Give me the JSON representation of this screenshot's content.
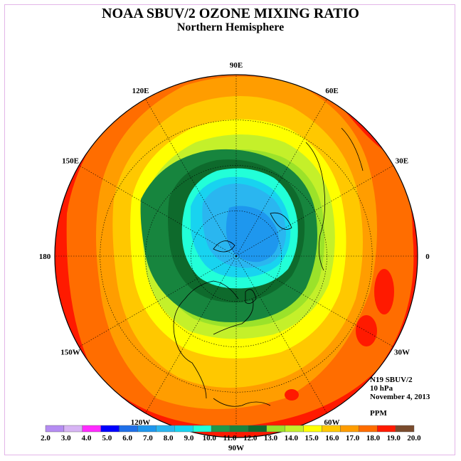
{
  "title": "NOAA SBUV/2 OZONE MIXING RATIO",
  "subtitle": "Northern Hemisphere",
  "info": {
    "instrument": "N19 SBUV/2",
    "level": "10 hPa",
    "date": "November 4, 2013",
    "unit": "PPM"
  },
  "longitude_labels": [
    {
      "text": "90E",
      "lon": 90
    },
    {
      "text": "60E",
      "lon": 60
    },
    {
      "text": "30E",
      "lon": 30
    },
    {
      "text": "0",
      "lon": 0
    },
    {
      "text": "30W",
      "lon": -30
    },
    {
      "text": "60W",
      "lon": -60
    },
    {
      "text": "90W",
      "lon": -90
    },
    {
      "text": "120W",
      "lon": -120
    },
    {
      "text": "150W",
      "lon": -150
    },
    {
      "text": "180",
      "lon": 180
    },
    {
      "text": "150E",
      "lon": 150
    },
    {
      "text": "120E",
      "lon": 120
    }
  ],
  "colorbar": {
    "ticks": [
      "2.0",
      "3.0",
      "4.0",
      "5.0",
      "6.0",
      "7.0",
      "8.0",
      "9.0",
      "10.0",
      "11.0",
      "12.0",
      "13.0",
      "14.0",
      "15.0",
      "16.0",
      "17.0",
      "18.0",
      "19.0",
      "20.0"
    ],
    "colors": [
      "#b58cf2",
      "#d7b4f4",
      "#ff2bff",
      "#0000ff",
      "#1f6fe8",
      "#1e97ee",
      "#2ab6f0",
      "#18d3f0",
      "#22ffd8",
      "#1d9a4a",
      "#17853e",
      "#0e6a2c",
      "#9be22a",
      "#c4f02a",
      "#ffff00",
      "#ffc800",
      "#ff9d00",
      "#ff6d00",
      "#ff1a00",
      "#7a4b2d"
    ]
  },
  "map_colors": {
    "red": "#ff1a00",
    "orange_red": "#ff6d00",
    "orange": "#ff9d00",
    "gold": "#ffc800",
    "yellow": "#ffff00",
    "yellow_green": "#c4f02a",
    "light_green": "#9be22a",
    "green": "#17853e",
    "dark_green": "#0e6a2c",
    "aqua": "#22ffd8",
    "cyan": "#18d3f0",
    "sky": "#2ab6f0",
    "blue": "#1e97ee"
  }
}
